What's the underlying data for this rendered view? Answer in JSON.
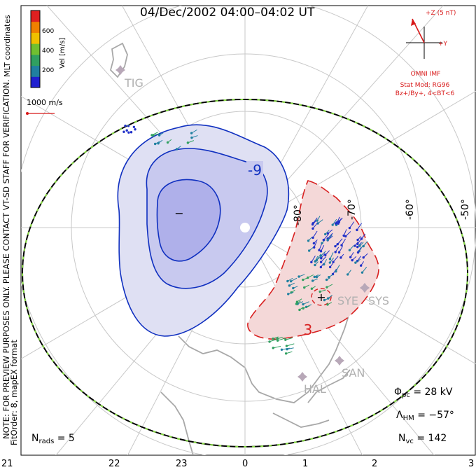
{
  "title": "04/Dec/2002 04:00–04:02 UT",
  "notes": {
    "coordinates": "MLT coordinates",
    "preview": "NOTE: FOR PREVIEW PURPOSES ONLY. PLEASE CONTACT VT-SD STAFF FOR VERIFICATION.",
    "fit": "FitOrder: 8, mapEX format"
  },
  "colorbar": {
    "label": "Vel [m/s]",
    "ticks": [
      "600",
      "400",
      "200"
    ],
    "colors": [
      "#2020d0",
      "#2080a0",
      "#30a060",
      "#70c030",
      "#f0c000",
      "#f08000",
      "#e02020"
    ]
  },
  "reference_vector": {
    "label": "1000 m/s",
    "color": "#d81818"
  },
  "imf": {
    "z_label": "+Z (5 nT)",
    "y_label": "+Y",
    "source": "OMNI IMF",
    "model": "Stat Mod: RG96",
    "condition": "Bz+/By+, 4<BT<6"
  },
  "latitude_labels": [
    "-80°",
    "-70°",
    "-60°",
    "-50°"
  ],
  "mlt_labels": [
    "21",
    "22",
    "23",
    "0",
    "1",
    "2",
    "3"
  ],
  "stations": [
    {
      "name": "TIG"
    },
    {
      "name": "SYE"
    },
    {
      "name": "SYS"
    },
    {
      "name": "SAN"
    },
    {
      "name": "HAL"
    }
  ],
  "contours": {
    "negative_label": "-9",
    "negative_center": "−",
    "positive_label": "3",
    "positive_center": "+"
  },
  "stats": {
    "phi_pc": {
      "symbol": "Φ",
      "sub": "pc",
      "value": "= 28 kV"
    },
    "lambda_hm": {
      "symbol": "Λ",
      "sub": "HM",
      "value": "= −57°"
    },
    "n_vc": {
      "symbol": "N",
      "sub": "vc",
      "value": "= 142"
    },
    "n_rads": {
      "symbol": "N",
      "sub": "rads",
      "value": "= 5"
    }
  },
  "accent_colors": {
    "negative_fill": "#d8d8f0",
    "negative_line": "#1030c0",
    "positive_fill": "#f4d8d8",
    "positive_line": "#d82020",
    "boundary_dash": "#88dd44"
  }
}
